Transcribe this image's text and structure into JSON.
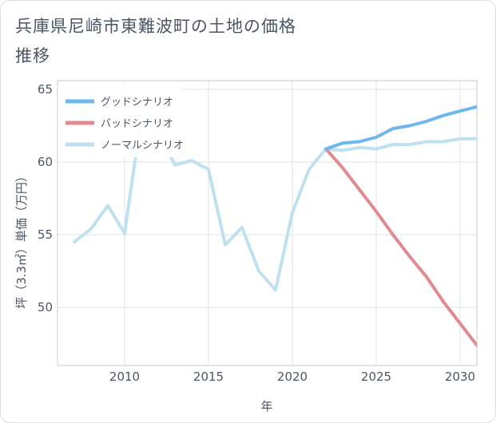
{
  "title": "兵庫県尼崎市東難波町の土地の価格推移",
  "chart_data": {
    "type": "line",
    "xlabel": "年",
    "ylabel": "坪（3.3㎡）単価（万円）",
    "xlim": [
      2006,
      2031
    ],
    "ylim": [
      46,
      65.6
    ],
    "xticks": [
      2010,
      2015,
      2020,
      2025,
      2030
    ],
    "yticks": [
      50,
      55,
      60,
      65
    ],
    "grid": true,
    "legend_position": "top-left",
    "series": [
      {
        "name": "グッドシナリオ",
        "color": "#6cb8ee",
        "x": [
          2022,
          2023,
          2024,
          2025,
          2026,
          2027,
          2028,
          2029,
          2030,
          2031
        ],
        "y": [
          60.9,
          61.3,
          61.4,
          61.7,
          62.3,
          62.5,
          62.8,
          63.2,
          63.5,
          63.8
        ]
      },
      {
        "name": "バッドシナリオ",
        "color": "#e08a92",
        "x": [
          2022,
          2023,
          2024,
          2025,
          2026,
          2027,
          2028,
          2029,
          2030,
          2031
        ],
        "y": [
          60.9,
          59.6,
          58.1,
          56.6,
          55.0,
          53.5,
          52.1,
          50.4,
          48.9,
          47.4
        ]
      },
      {
        "name": "ノーマルシナリオ",
        "color": "#bfe0ef",
        "x": [
          2007,
          2008,
          2009,
          2010,
          2011,
          2012,
          2013,
          2014,
          2015,
          2016,
          2017,
          2018,
          2019,
          2020,
          2021,
          2022,
          2023,
          2024,
          2025,
          2026,
          2027,
          2028,
          2029,
          2030,
          2031
        ],
        "y": [
          54.5,
          55.4,
          57.0,
          55.1,
          63.1,
          62.0,
          59.8,
          60.1,
          59.5,
          54.3,
          55.5,
          52.5,
          51.2,
          56.5,
          59.5,
          60.9,
          60.8,
          61.0,
          60.9,
          61.2,
          61.2,
          61.4,
          61.4,
          61.6,
          61.6
        ]
      }
    ]
  }
}
